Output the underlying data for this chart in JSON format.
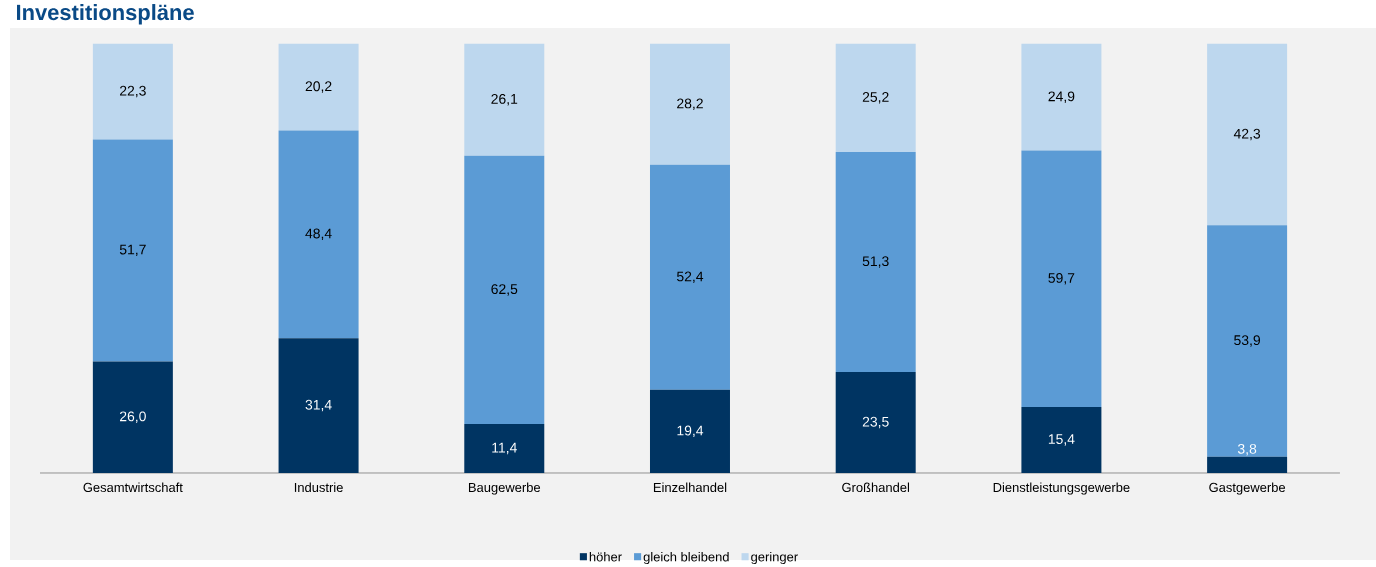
{
  "chart_data": {
    "type": "bar",
    "title": "Investitionspläne",
    "stacked": true,
    "legend": "bottom",
    "categories": [
      "Gesamtwirtschaft",
      "Industrie",
      "Baugewerbe",
      "Einzelhandel",
      "Großhandel",
      "Dienstleistungsgewerbe",
      "Gastgewerbe"
    ],
    "series": [
      {
        "name": "höher",
        "color": "#003462",
        "values": [
          26.0,
          31.4,
          11.4,
          19.4,
          23.5,
          15.4,
          3.8
        ],
        "value_labels": [
          "26,0",
          "31,4",
          "11,4",
          "19,4",
          "23,5",
          "15,4",
          "3,8"
        ]
      },
      {
        "name": "gleich bleibend",
        "color": "#5b9bd5",
        "values": [
          51.7,
          48.4,
          62.5,
          52.4,
          51.3,
          59.7,
          53.9
        ],
        "value_labels": [
          "51,7",
          "48,4",
          "62,5",
          "52,4",
          "51,3",
          "59,7",
          "53,9"
        ]
      },
      {
        "name": "geringer",
        "color": "#bdd7ee",
        "values": [
          22.3,
          20.2,
          26.1,
          28.2,
          25.2,
          24.9,
          42.3
        ],
        "value_labels": [
          "22,3",
          "20,2",
          "26,1",
          "28,2",
          "25,2",
          "24,9",
          "42,3"
        ]
      }
    ]
  }
}
